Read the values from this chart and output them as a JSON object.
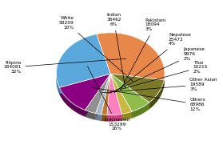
{
  "labels": [
    "Filipino\n184081\n32%",
    "White\n58209\n10%",
    "Indian\n36462\n6%",
    "Pakistani\n18094\n3%",
    "Nepalese\n25472\n4%",
    "Japanese\n9976\n2%",
    "Thai\n10215\n2%",
    "Other Asian\n19589\n3%",
    "Others\n68986\n12%",
    "Indonesian\n153299\n26%"
  ],
  "values": [
    184081,
    58209,
    36462,
    18094,
    25472,
    9976,
    10215,
    19589,
    68986,
    153299
  ],
  "colors": [
    "#E8874A",
    "#7A7A2A",
    "#8FBC4A",
    "#C8B840",
    "#FF80C0",
    "#C07830",
    "#A8B8C8",
    "#909090",
    "#8B0080",
    "#5BA8DC"
  ],
  "dark_colors": [
    "#B05820",
    "#4A4A10",
    "#5A8020",
    "#908820",
    "#D04080",
    "#805010",
    "#708098",
    "#606060",
    "#5B0050",
    "#3A78AC"
  ],
  "startangle": 105,
  "explode_idx": 9,
  "explode_amount": 0.05
}
